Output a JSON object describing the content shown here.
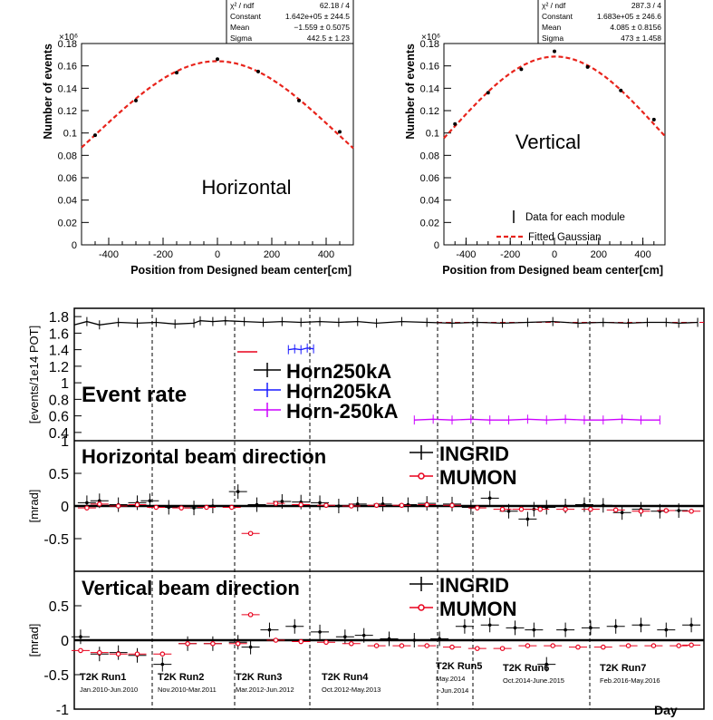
{
  "chart_data": [
    {
      "type": "scatter",
      "id": "horizontal",
      "title": "Horizontal",
      "xlabel": "Position from Designed beam center[cm]",
      "ylabel": "Number of events",
      "y_multiplier": "×10⁶",
      "xlim": [
        -500,
        500
      ],
      "ylim": [
        0,
        0.18
      ],
      "xticks": [
        -400,
        -200,
        0,
        200,
        400
      ],
      "yticks": [
        0,
        0.02,
        0.04,
        0.06,
        0.08,
        0.1,
        0.12,
        0.14,
        0.16,
        0.18
      ],
      "points": {
        "x": [
          -450,
          -300,
          -150,
          0,
          150,
          300,
          450
        ],
        "y": [
          0.098,
          0.129,
          0.154,
          0.166,
          0.155,
          0.129,
          0.101
        ]
      },
      "fit": {
        "constant": 0.1642,
        "mean": -1.559,
        "sigma": 442.5
      },
      "stats": [
        {
          "label": "χ² / ndf",
          "value": "62.18 / 4"
        },
        {
          "label": "Constant",
          "value": "1.642e+05 ± 244.5"
        },
        {
          "label": "Mean",
          "value": "−1.559 ± 0.5075"
        },
        {
          "label": "Sigma",
          "value": "442.5 ± 1.23"
        }
      ]
    },
    {
      "type": "scatter",
      "id": "vertical",
      "title": "Vertical",
      "xlabel": "Position from Designed beam center[cm]",
      "ylabel": "Number of events",
      "y_multiplier": "×10⁶",
      "xlim": [
        -500,
        500
      ],
      "ylim": [
        0,
        0.18
      ],
      "xticks": [
        -400,
        -200,
        0,
        200,
        400
      ],
      "yticks": [
        0,
        0.02,
        0.04,
        0.06,
        0.08,
        0.1,
        0.12,
        0.14,
        0.16,
        0.18
      ],
      "points": {
        "x": [
          -450,
          -300,
          -150,
          0,
          150,
          300,
          450
        ],
        "y": [
          0.108,
          0.136,
          0.157,
          0.173,
          0.159,
          0.138,
          0.112
        ]
      },
      "fit": {
        "constant": 0.1683,
        "mean": 4.085,
        "sigma": 473
      },
      "stats": [
        {
          "label": "χ² / ndf",
          "value": "287.3 / 4"
        },
        {
          "label": "Constant",
          "value": "1.683e+05 ± 246.6"
        },
        {
          "label": "Mean",
          "value": "4.085 ± 0.8156"
        },
        {
          "label": "Sigma",
          "value": "473 ± 1.458"
        }
      ],
      "legend": [
        "Data for each module",
        "Fitted Gaussian"
      ]
    },
    {
      "type": "line",
      "id": "event_rate",
      "title": "Event rate",
      "ylabel": "[events/1e14 POT]",
      "xlim": [
        0,
        100
      ],
      "ylim": [
        0.3,
        1.9
      ],
      "yticks": [
        0.4,
        0.6,
        0.8,
        1,
        1.2,
        1.4,
        1.6,
        1.8
      ],
      "reference_line": 1.73,
      "series": [
        {
          "name": "Horn250kA",
          "color": "#000000",
          "x": [
            0,
            2,
            4,
            7,
            10,
            13,
            16,
            19,
            20,
            22,
            24,
            27,
            30,
            33,
            36,
            39,
            42,
            45,
            48,
            52,
            56,
            60,
            64,
            68,
            72,
            76,
            80,
            84,
            88,
            91,
            94,
            96,
            99
          ],
          "y": [
            1.7,
            1.74,
            1.7,
            1.73,
            1.72,
            1.73,
            1.71,
            1.72,
            1.75,
            1.74,
            1.75,
            1.74,
            1.73,
            1.74,
            1.73,
            1.74,
            1.73,
            1.74,
            1.72,
            1.74,
            1.73,
            1.72,
            1.73,
            1.72,
            1.73,
            1.74,
            1.72,
            1.73,
            1.72,
            1.73,
            1.73,
            1.72,
            1.73
          ]
        },
        {
          "name": "Horn205kA",
          "color": "#1a1aff",
          "x": [
            34,
            35,
            36,
            37,
            38
          ],
          "y": [
            1.4,
            1.41,
            1.4,
            1.42,
            1.41
          ]
        },
        {
          "name": "Horn-250kA",
          "color": "#cc00ff",
          "x": [
            54,
            57,
            60,
            63,
            66,
            69,
            72,
            75,
            78,
            81,
            84,
            87,
            90,
            93
          ],
          "y": [
            0.55,
            0.56,
            0.55,
            0.56,
            0.55,
            0.55,
            0.56,
            0.55,
            0.56,
            0.55,
            0.55,
            0.56,
            0.55,
            0.55
          ]
        }
      ]
    },
    {
      "type": "scatter",
      "id": "horizontal_direction",
      "title": "Horizontal beam direction",
      "ylabel": "[mrad]",
      "xlim": [
        0,
        100
      ],
      "ylim": [
        -1,
        1
      ],
      "yticks": [
        -0.5,
        0,
        0.5,
        1
      ],
      "series": [
        {
          "name": "INGRID",
          "color": "#000000",
          "x": [
            2,
            4,
            7,
            10,
            12,
            15,
            19,
            22,
            26,
            29,
            33,
            36,
            39,
            42,
            45,
            49,
            53,
            56,
            60,
            63,
            66,
            69,
            72,
            73,
            75,
            78,
            81,
            84,
            87,
            90,
            93,
            96
          ],
          "y": [
            0.05,
            0.08,
            0.02,
            0.05,
            0.08,
            -0.02,
            -0.03,
            0.0,
            0.22,
            0.02,
            0.07,
            0.06,
            0.05,
            0.0,
            0.03,
            0.03,
            0.02,
            0.04,
            0.03,
            -0.02,
            0.12,
            -0.08,
            -0.2,
            -0.05,
            -0.02,
            0.0,
            0.02,
            0.01,
            -0.1,
            -0.05,
            -0.08,
            -0.07
          ]
        },
        {
          "name": "MUMON",
          "color": "#e8001c",
          "x": [
            2,
            4,
            7,
            10,
            13,
            17,
            21,
            25,
            28,
            32,
            36,
            40,
            44,
            48,
            52,
            56,
            60,
            64,
            68,
            71,
            74,
            78,
            82,
            86,
            90,
            94,
            98
          ],
          "y": [
            -0.03,
            0.03,
            0.0,
            0.02,
            -0.02,
            -0.03,
            -0.02,
            -0.02,
            -0.42,
            0.04,
            0.02,
            0.01,
            0.0,
            0.01,
            0.01,
            0.02,
            0.01,
            -0.03,
            -0.05,
            -0.05,
            -0.05,
            -0.05,
            -0.05,
            -0.06,
            -0.08,
            -0.07,
            -0.08
          ]
        }
      ]
    },
    {
      "type": "scatter",
      "id": "vertical_direction",
      "title": "Vertical beam direction",
      "ylabel": "[mrad]",
      "xlim": [
        0,
        100
      ],
      "ylim": [
        -1,
        1
      ],
      "yticks": [
        -1,
        -0.5,
        0,
        0.5
      ],
      "xlabel": "Day",
      "series": [
        {
          "name": "INGRID",
          "color": "#000000",
          "x": [
            1,
            4,
            7,
            10,
            14,
            18,
            22,
            26,
            28,
            31,
            35,
            39,
            43,
            46,
            50,
            54,
            58,
            62,
            66,
            70,
            73,
            75,
            78,
            82,
            86,
            90,
            94,
            98
          ],
          "y": [
            0.05,
            -0.2,
            -0.18,
            -0.22,
            -0.35,
            -0.05,
            -0.05,
            -0.03,
            -0.1,
            0.15,
            0.2,
            0.12,
            0.05,
            0.07,
            0.02,
            0.0,
            0.02,
            0.2,
            0.22,
            0.18,
            0.15,
            -0.35,
            0.15,
            0.18,
            0.2,
            0.22,
            0.15,
            0.22
          ]
        },
        {
          "name": "MUMON",
          "color": "#e8001c",
          "x": [
            1,
            4,
            7,
            10,
            14,
            18,
            22,
            26,
            28,
            32,
            36,
            40,
            44,
            48,
            52,
            56,
            60,
            64,
            68,
            72,
            76,
            80,
            84,
            88,
            92,
            96,
            98
          ],
          "y": [
            -0.15,
            -0.18,
            -0.2,
            -0.2,
            -0.2,
            -0.05,
            -0.05,
            -0.05,
            0.37,
            0.0,
            -0.02,
            -0.03,
            -0.05,
            -0.08,
            -0.08,
            -0.08,
            -0.1,
            -0.12,
            -0.12,
            -0.08,
            -0.08,
            -0.1,
            -0.1,
            -0.08,
            -0.08,
            -0.08,
            -0.07
          ]
        }
      ]
    }
  ],
  "runs": [
    {
      "name": "T2K Run1",
      "period": "Jan.2010-Jun.2010"
    },
    {
      "name": "T2K Run2",
      "period": "Nov.2010-Mar.2011"
    },
    {
      "name": "T2K Run3",
      "period": "Mar.2012-Jun.2012"
    },
    {
      "name": "T2K Run4",
      "period": "Oct.2012-May.2013"
    },
    {
      "name": "T2K Run5",
      "period": "May.2014"
    },
    {
      "name": "T2K Run6",
      "period": "Oct.2014-June.2015"
    },
    {
      "name": "T2K Run7",
      "period": "Feb.2016-May.2016"
    }
  ],
  "run5_period_2": "-Jun.2014",
  "run_boundaries": [
    19,
    37,
    55,
    84,
    92,
    118,
    150
  ],
  "colors": {
    "fit": "#e8231b",
    "horn250": "#000000",
    "horn205": "#1a1aff",
    "horn_neg250": "#cc00ff",
    "mumon": "#e8001c"
  }
}
